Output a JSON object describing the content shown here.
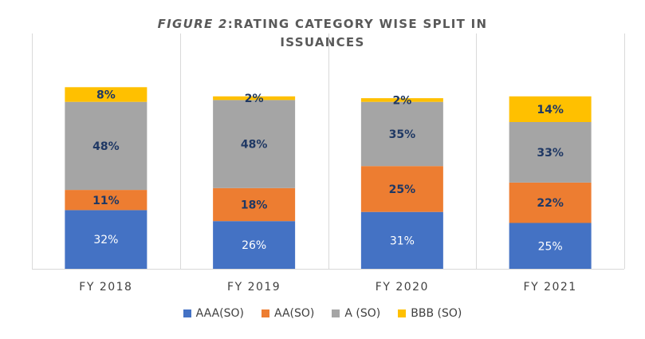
{
  "chart_data": {
    "type": "bar",
    "stacked": true,
    "title_italic": "FIGURE 2",
    "title_rest": ":RATING CATEGORY WISE SPLIT IN",
    "title_line2": "ISSUANCES",
    "categories": [
      "FY 2018",
      "FY 2019",
      "FY 2020",
      "FY 2021"
    ],
    "series": [
      {
        "name": "AAA(SO)",
        "color": "#4472C4",
        "label_color": "#ffffff",
        "values": [
          32,
          26,
          31,
          25
        ],
        "labels": [
          "32%",
          "26%",
          "31%",
          "25%"
        ]
      },
      {
        "name": "AA(SO)",
        "color": "#ED7D31",
        "label_color": "#1F3864",
        "values": [
          11,
          18,
          25,
          22
        ],
        "labels": [
          "11%",
          "18%",
          "25%",
          "22%"
        ]
      },
      {
        "name": "A (SO)",
        "color": "#A5A5A5",
        "label_color": "#1F3864",
        "values": [
          48,
          48,
          35,
          33
        ],
        "labels": [
          "48%",
          "48%",
          "35%",
          "33%"
        ]
      },
      {
        "name": "BBB (SO)",
        "color": "#FFC000",
        "label_color": "#1F3864",
        "values": [
          8,
          2,
          2,
          14
        ],
        "labels": [
          "8%",
          "2%",
          "2%",
          "14%"
        ]
      }
    ],
    "ylim": [
      0,
      100
    ],
    "grid": "vertical",
    "legend": "bottom"
  }
}
